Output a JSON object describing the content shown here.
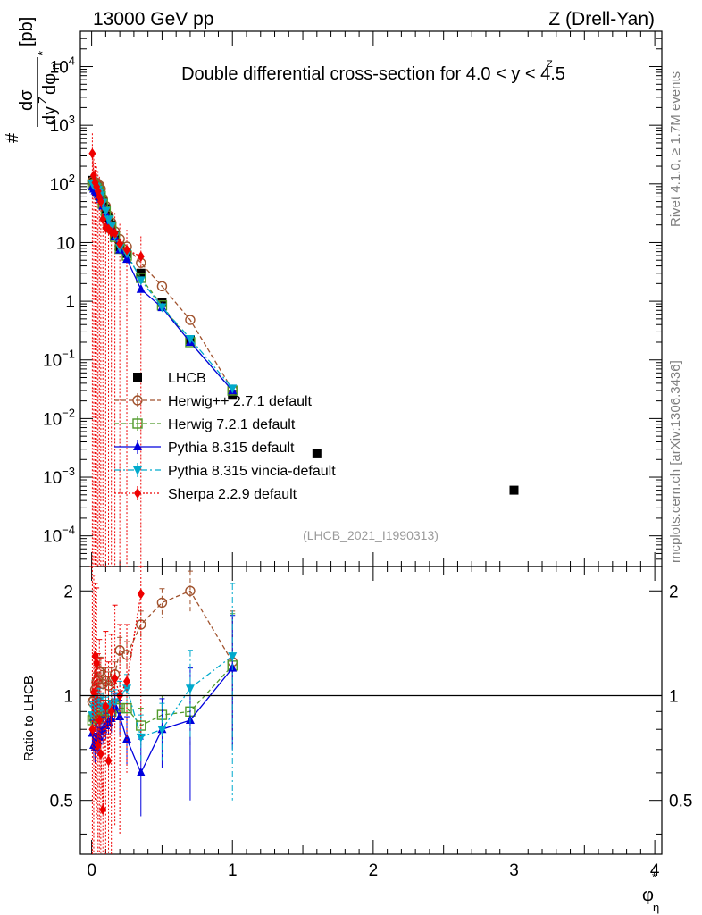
{
  "header": {
    "left": "13000 GeV pp",
    "right": "Z (Drell-Yan)"
  },
  "side_labels": {
    "rivet": "Rivet 4.1.0, ≥ 1.7M events",
    "mcplots": "mcplots.cern.ch [arXiv:1306.3436]"
  },
  "chart_data": {
    "type": "scatter",
    "title": "Double differential cross-section for 4.0 < y < 4.5",
    "title_decoration": "Z",
    "analysis_tag": "(LHCB_2021_I1990313)",
    "xlabel": "φ",
    "xlabel_sup": "*",
    "xlabel_sub": "η",
    "xlim": [
      -0.08,
      4.05
    ],
    "x_ticks": [
      "0",
      "1",
      "2",
      "3",
      "4"
    ],
    "ylabel": {
      "numerator": "dσ",
      "denominator": "dy",
      "denominator_sup": "Z",
      "denominator_tail": "dφ",
      "denominator_sub": "η",
      "star": "*",
      "prefix": "#",
      "unit": "[pb]"
    },
    "ylim": [
      3e-05,
      40000
    ],
    "y_ticks": [
      {
        "value": 10000,
        "base": "10",
        "exp": "4"
      },
      {
        "value": 1000,
        "base": "10",
        "exp": "3"
      },
      {
        "value": 100,
        "base": "10",
        "exp": "2"
      },
      {
        "value": 10,
        "base": "10",
        "exp": ""
      },
      {
        "value": 1,
        "base": "1",
        "exp": ""
      },
      {
        "value": 0.1,
        "base": "10",
        "exp": "−1"
      },
      {
        "value": 0.01,
        "base": "10",
        "exp": "−2"
      },
      {
        "value": 0.001,
        "base": "10",
        "exp": "−3"
      },
      {
        "value": 0.0001,
        "base": "10",
        "exp": "−4"
      }
    ],
    "series": [
      {
        "name": "LHCB",
        "color": "#000000",
        "marker": "square",
        "x": [
          0.005,
          0.015,
          0.025,
          0.035,
          0.045,
          0.055,
          0.065,
          0.08,
          0.1,
          0.12,
          0.14,
          0.165,
          0.2,
          0.25,
          0.35,
          0.5,
          0.7,
          1.0,
          1.6,
          3.0
        ],
        "values": [
          115,
          107,
          102,
          95,
          88,
          80,
          70,
          52,
          38,
          27,
          20,
          13.5,
          8.5,
          6.5,
          3.0,
          0.95,
          0.22,
          0.025,
          0.0025,
          0.0006
        ]
      },
      {
        "name": "Herwig++ 2.7.1 default",
        "color": "#a0522d",
        "marker": "circle-open",
        "line": "dashed",
        "x": [
          0.005,
          0.015,
          0.025,
          0.035,
          0.045,
          0.055,
          0.065,
          0.08,
          0.1,
          0.12,
          0.14,
          0.165,
          0.2,
          0.25,
          0.35,
          0.5,
          0.7,
          1.0
        ],
        "values": [
          110,
          104,
          106,
          105,
          98,
          94,
          82,
          56,
          42,
          29,
          22,
          15.5,
          11.5,
          8.5,
          4.5,
          1.8,
          0.48,
          0.031
        ]
      },
      {
        "name": "Herwig 7.2.1 default",
        "color": "#4f9a2a",
        "marker": "square-open",
        "line": "dashed",
        "x": [
          0.005,
          0.015,
          0.025,
          0.035,
          0.045,
          0.055,
          0.065,
          0.08,
          0.1,
          0.12,
          0.14,
          0.165,
          0.2,
          0.25,
          0.35,
          0.5,
          0.7,
          1.0
        ],
        "values": [
          98,
          93,
          88,
          84,
          76,
          70,
          62,
          46,
          34,
          24,
          18,
          12.5,
          7.8,
          6.0,
          2.5,
          0.85,
          0.2,
          0.03
        ]
      },
      {
        "name": "Pythia 8.315 default",
        "color": "#0000dd",
        "marker": "triangle-up",
        "line": "solid",
        "x": [
          0.005,
          0.015,
          0.025,
          0.035,
          0.045,
          0.055,
          0.065,
          0.08,
          0.1,
          0.12,
          0.14,
          0.165,
          0.2,
          0.25,
          0.35,
          0.5,
          0.7,
          1.0
        ],
        "values": [
          90,
          82,
          76,
          72,
          66,
          60,
          55,
          42,
          31,
          22,
          17,
          12.5,
          7.5,
          5.2,
          1.6,
          0.78,
          0.2,
          0.03
        ]
      },
      {
        "name": "Pythia 8.315 vincia-default",
        "color": "#00aacc",
        "marker": "triangle-down",
        "line": "dashdot",
        "x": [
          0.005,
          0.015,
          0.025,
          0.035,
          0.045,
          0.055,
          0.065,
          0.08,
          0.1,
          0.12,
          0.14,
          0.165,
          0.2,
          0.25,
          0.35,
          0.5,
          0.7,
          1.0
        ],
        "values": [
          102,
          96,
          92,
          88,
          80,
          72,
          64,
          48,
          35,
          25,
          19,
          13.0,
          8.2,
          6.6,
          2.3,
          0.8,
          0.23,
          0.033
        ]
      },
      {
        "name": "Sherpa 2.2.9 default",
        "color": "#ee0000",
        "marker": "diamond",
        "line": "dotted",
        "x": [
          0.005,
          0.015,
          0.025,
          0.035,
          0.045,
          0.055,
          0.065,
          0.08,
          0.1,
          0.12,
          0.14,
          0.165,
          0.2,
          0.25,
          0.35
        ],
        "values": [
          330,
          140,
          105,
          90,
          75,
          60,
          50,
          25,
          18,
          17,
          15,
          14.5,
          9.5,
          7.5,
          5.8
        ]
      }
    ],
    "ratio": {
      "ylabel": "Ratio to LHCB",
      "ylim": [
        0.35,
        2.35
      ],
      "y_ticks": [
        "2",
        "1",
        "0.5"
      ],
      "y_tick_values": [
        2,
        1,
        0.5
      ],
      "series": [
        {
          "name": "Herwig++ 2.7.1 default",
          "x": [
            0.005,
            0.015,
            0.025,
            0.035,
            0.045,
            0.055,
            0.065,
            0.08,
            0.1,
            0.12,
            0.14,
            0.165,
            0.2,
            0.25,
            0.35,
            0.5,
            0.7,
            1.0
          ],
          "values": [
            0.96,
            0.97,
            1.04,
            1.1,
            1.11,
            1.17,
            1.17,
            1.08,
            1.1,
            1.07,
            1.1,
            1.15,
            1.35,
            1.31,
            1.6,
            1.85,
            2.0,
            1.25
          ],
          "err": [
            0.12,
            0.12,
            0.12,
            0.12,
            0.12,
            0.12,
            0.12,
            0.1,
            0.1,
            0.1,
            0.1,
            0.1,
            0.12,
            0.12,
            0.15,
            0.18,
            0.28,
            0.5
          ]
        },
        {
          "name": "Herwig 7.2.1 default",
          "x": [
            0.005,
            0.015,
            0.025,
            0.035,
            0.045,
            0.055,
            0.065,
            0.08,
            0.1,
            0.12,
            0.14,
            0.165,
            0.2,
            0.25,
            0.35,
            0.5,
            0.7,
            1.0
          ],
          "values": [
            0.85,
            0.87,
            0.86,
            0.88,
            0.86,
            0.87,
            0.89,
            0.88,
            0.9,
            0.9,
            0.9,
            0.93,
            0.92,
            0.92,
            0.82,
            0.88,
            0.9,
            1.22
          ],
          "err": [
            0.08,
            0.08,
            0.08,
            0.08,
            0.08,
            0.08,
            0.08,
            0.07,
            0.07,
            0.07,
            0.07,
            0.07,
            0.08,
            0.08,
            0.1,
            0.12,
            0.18,
            0.5
          ]
        },
        {
          "name": "Pythia 8.315 default",
          "x": [
            0.005,
            0.015,
            0.025,
            0.035,
            0.045,
            0.055,
            0.065,
            0.08,
            0.1,
            0.12,
            0.14,
            0.165,
            0.2,
            0.25,
            0.35,
            0.5,
            0.7,
            1.0
          ],
          "values": [
            0.78,
            0.72,
            0.71,
            0.75,
            0.74,
            0.76,
            0.79,
            0.8,
            0.82,
            0.84,
            0.86,
            0.93,
            0.87,
            0.75,
            0.6,
            0.8,
            0.85,
            1.2
          ],
          "err": [
            0.07,
            0.07,
            0.07,
            0.07,
            0.07,
            0.07,
            0.08,
            0.07,
            0.07,
            0.07,
            0.08,
            0.08,
            0.1,
            0.12,
            0.15,
            0.18,
            0.35,
            0.5
          ]
        },
        {
          "name": "Pythia 8.315 vincia-default",
          "x": [
            0.005,
            0.015,
            0.025,
            0.035,
            0.045,
            0.055,
            0.065,
            0.08,
            0.1,
            0.12,
            0.14,
            0.165,
            0.2,
            0.25,
            0.35,
            0.5,
            0.7,
            1.0
          ],
          "values": [
            0.88,
            0.92,
            0.93,
            0.95,
            0.96,
            0.97,
            0.93,
            0.92,
            0.92,
            0.93,
            0.95,
            0.96,
            1.0,
            1.05,
            0.76,
            0.8,
            1.05,
            1.3
          ],
          "err": [
            0.08,
            0.08,
            0.08,
            0.08,
            0.08,
            0.08,
            0.08,
            0.07,
            0.07,
            0.07,
            0.08,
            0.08,
            0.1,
            0.1,
            0.12,
            0.15,
            0.3,
            0.8
          ]
        },
        {
          "name": "Sherpa 2.2.9 default",
          "x": [
            0.005,
            0.015,
            0.025,
            0.035,
            0.045,
            0.055,
            0.065,
            0.08,
            0.1,
            0.12,
            0.14,
            0.165,
            0.2,
            0.25,
            0.35
          ],
          "values": [
            0.8,
            1.02,
            1.3,
            1.24,
            0.72,
            0.85,
            0.68,
            0.47,
            0.93,
            0.65,
            0.9,
            1.12,
            1.0,
            1.1,
            1.96
          ],
          "err": [
            1.6,
            1.2,
            0.8,
            0.8,
            0.6,
            0.6,
            0.6,
            0.5,
            0.6,
            0.6,
            0.6,
            0.7,
            0.6,
            0.5,
            1.2
          ]
        }
      ]
    }
  }
}
